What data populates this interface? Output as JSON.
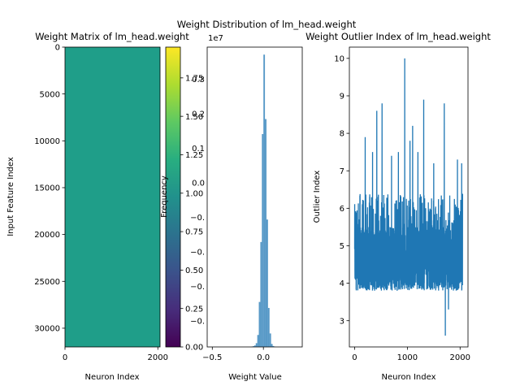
{
  "suptitle": "Weight Distribution of lm_head.weight",
  "chart_data": [
    {
      "type": "heatmap",
      "title": "Weight Matrix of lm_head.weight",
      "xlabel": "Neuron Index",
      "ylabel": "Input Feature Index",
      "xlim": [
        0,
        2048
      ],
      "ylim": [
        32000,
        0
      ],
      "x_ticks": [
        0,
        2000
      ],
      "y_ticks": [
        0,
        5000,
        10000,
        15000,
        20000,
        25000,
        30000
      ],
      "fill_color": "#1f9e89",
      "colorbar": {
        "cmap": "viridis",
        "range": [
          0.0,
          1.95
        ],
        "ticks": [
          0.0,
          0.25,
          0.5,
          0.75,
          1.0,
          1.25,
          1.5,
          1.75
        ],
        "tick_labels": [
          "0.00",
          "0.25",
          "0.50",
          "0.75",
          "1.00",
          "1.25",
          "1.50",
          "1.75"
        ],
        "offset_label": "1e7",
        "overlapping_tick_labels": [
          "0.3",
          "0.2",
          "0.1",
          "0.0",
          "−0.",
          "−0.",
          "−0.",
          "−0."
        ]
      }
    },
    {
      "type": "bar",
      "title": "",
      "xlabel": "Weight Value",
      "ylabel": "Frequency",
      "xlim": [
        -0.55,
        0.38
      ],
      "x_ticks": [
        -0.5,
        0.0
      ],
      "x_tick_labels": [
        "−0.5",
        "0.0"
      ],
      "bar_color": "#1f77b4",
      "bar_alpha": 0.75,
      "bins": [
        {
          "x0": -0.12,
          "x1": -0.105,
          "count": 0.002
        },
        {
          "x0": -0.105,
          "x1": -0.09,
          "count": 0.005
        },
        {
          "x0": -0.09,
          "x1": -0.075,
          "count": 0.01
        },
        {
          "x0": -0.075,
          "x1": -0.06,
          "count": 0.025
        },
        {
          "x0": -0.06,
          "x1": -0.045,
          "count": 0.08
        },
        {
          "x0": -0.045,
          "x1": -0.03,
          "count": 0.3
        },
        {
          "x0": -0.03,
          "x1": -0.015,
          "count": 0.7
        },
        {
          "x0": -0.015,
          "x1": 0.0,
          "count": 1.42
        },
        {
          "x0": 0.0,
          "x1": 0.015,
          "count": 1.95
        },
        {
          "x0": 0.015,
          "x1": 0.03,
          "count": 1.52
        },
        {
          "x0": 0.03,
          "x1": 0.045,
          "count": 0.85
        },
        {
          "x0": 0.045,
          "x1": 0.06,
          "count": 0.26
        },
        {
          "x0": 0.06,
          "x1": 0.075,
          "count": 0.09
        },
        {
          "x0": 0.075,
          "x1": 0.09,
          "count": 0.02
        },
        {
          "x0": 0.09,
          "x1": 0.105,
          "count": 0.006
        },
        {
          "x0": 0.105,
          "x1": 0.12,
          "count": 0.002
        }
      ],
      "ylim": [
        0,
        2.0
      ]
    },
    {
      "type": "line",
      "title": "Weight Outlier Index of lm_head.weight",
      "xlabel": "Neuron Index",
      "ylabel": "Outlier Index",
      "xlim": [
        -100,
        2150
      ],
      "ylim": [
        2.3,
        10.3
      ],
      "x_ticks": [
        0,
        1000,
        2000
      ],
      "y_ticks": [
        3,
        4,
        5,
        6,
        7,
        8,
        9,
        10
      ],
      "line_color": "#1f77b4",
      "n_points": 2048,
      "baseline_range": [
        3.8,
        5.5
      ],
      "spikes": [
        {
          "x": 200,
          "y": 7.9
        },
        {
          "x": 340,
          "y": 7.5
        },
        {
          "x": 420,
          "y": 8.6
        },
        {
          "x": 520,
          "y": 8.8
        },
        {
          "x": 700,
          "y": 7.4
        },
        {
          "x": 830,
          "y": 7.5
        },
        {
          "x": 950,
          "y": 10.0
        },
        {
          "x": 1050,
          "y": 7.8
        },
        {
          "x": 1100,
          "y": 8.2
        },
        {
          "x": 1200,
          "y": 7.5
        },
        {
          "x": 1310,
          "y": 8.9
        },
        {
          "x": 1500,
          "y": 7.2
        },
        {
          "x": 1700,
          "y": 8.8
        },
        {
          "x": 1720,
          "y": 2.6
        },
        {
          "x": 1780,
          "y": 3.3
        },
        {
          "x": 1950,
          "y": 7.3
        },
        {
          "x": 2030,
          "y": 7.2
        }
      ]
    }
  ]
}
